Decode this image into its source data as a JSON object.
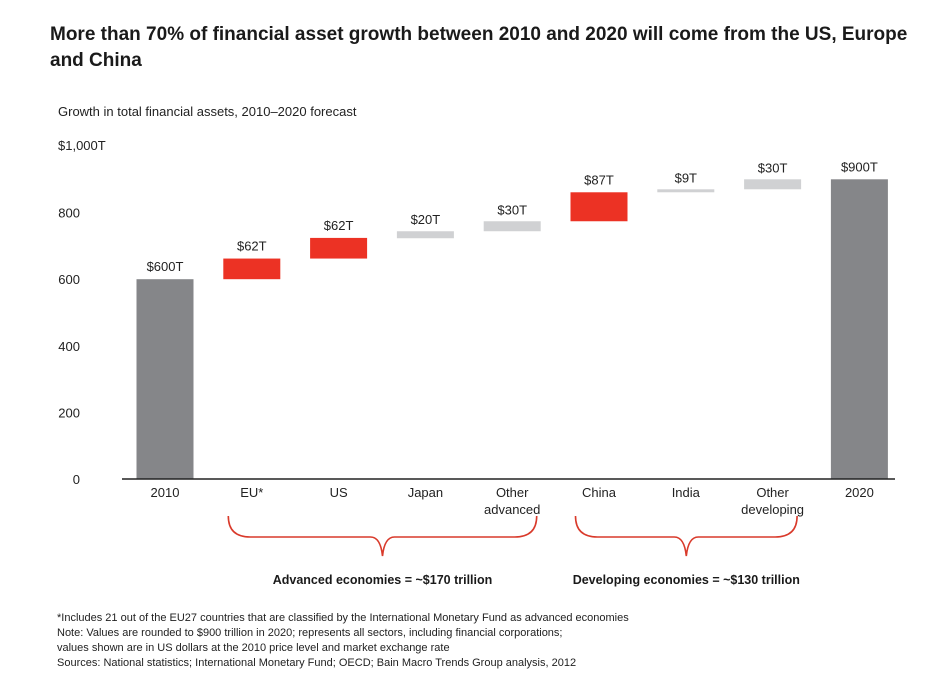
{
  "title": "More than 70% of financial asset growth between 2010 and 2020 will come from the US, Europe and China",
  "chart_data": {
    "type": "waterfall",
    "subtitle": "Growth in total financial assets, 2010–2020 forecast",
    "y_top_label": "$1,000T",
    "y_ticks": [
      {
        "value": 0,
        "label": "0"
      },
      {
        "value": 200,
        "label": "200"
      },
      {
        "value": 400,
        "label": "400"
      },
      {
        "value": 600,
        "label": "600"
      },
      {
        "value": 800,
        "label": "800"
      },
      {
        "value": 1000,
        "label": "$1,000T"
      }
    ],
    "ylim": [
      0,
      1000
    ],
    "bars": [
      {
        "category": "2010",
        "label": "$600T",
        "kind": "total",
        "start": 0,
        "end": 600
      },
      {
        "category": "EU*",
        "label": "$62T",
        "kind": "advanced",
        "start": 600,
        "end": 662
      },
      {
        "category": "US",
        "label": "$62T",
        "kind": "advanced",
        "start": 662,
        "end": 724
      },
      {
        "category": "Japan",
        "label": "$20T",
        "kind": "advanced-other",
        "start": 724,
        "end": 744
      },
      {
        "category": "Other advanced",
        "label": "$30T",
        "kind": "advanced-other",
        "start": 744,
        "end": 774
      },
      {
        "category": "China",
        "label": "$87T",
        "kind": "developing",
        "start": 774,
        "end": 861
      },
      {
        "category": "India",
        "label": "$9T",
        "kind": "developing-other",
        "start": 861,
        "end": 870
      },
      {
        "category": "Other developing",
        "label": "$30T",
        "kind": "developing-other",
        "start": 870,
        "end": 900
      },
      {
        "category": "2020",
        "label": "$900T",
        "kind": "total",
        "start": 0,
        "end": 900
      }
    ],
    "groups": [
      {
        "label": "Advanced economies = ~$170 trillion",
        "from": 1,
        "to": 4
      },
      {
        "label": "Developing economies = ~$130 trillion",
        "from": 5,
        "to": 7
      }
    ],
    "colors": {
      "total": "#858689",
      "highlight": "#ec3224",
      "minor": "#d0d1d3",
      "brace": "#d93a2b",
      "axis": "#222222"
    }
  },
  "footnotes": [
    "*Includes 21 out of the EU27 countries that are classified by the International Monetary Fund as advanced economies",
    "Note: Values are rounded to $900 trillion in 2020; represents all sectors, including financial corporations;",
    "values shown are in US dollars at the 2010 price level and market exchange rate",
    "Sources: National statistics; International Monetary Fund; OECD; Bain Macro Trends Group analysis, 2012"
  ]
}
